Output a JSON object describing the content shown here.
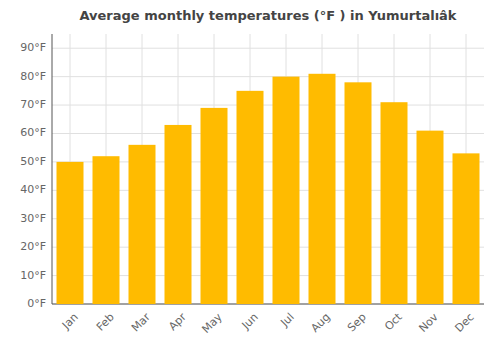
{
  "chart_data": {
    "type": "bar",
    "title": "Average monthly temperatures (°F ) in Yumurtalıâk",
    "categories": [
      "Jan",
      "Feb",
      "Mar",
      "Apr",
      "May",
      "Jun",
      "Jul",
      "Aug",
      "Sep",
      "Oct",
      "Nov",
      "Dec"
    ],
    "values": [
      50,
      52,
      56,
      63,
      69,
      75,
      80,
      81,
      78,
      71,
      61,
      53
    ],
    "color": "#FFBB00",
    "ylim": [
      0,
      95
    ],
    "yticks": [
      {
        "value": 0,
        "label": "0°F"
      },
      {
        "value": 10,
        "label": "10°F"
      },
      {
        "value": 20,
        "label": "20°F"
      },
      {
        "value": 30,
        "label": "30°F"
      },
      {
        "value": 40,
        "label": "40°F"
      },
      {
        "value": 50,
        "label": "50°F"
      },
      {
        "value": 60,
        "label": "60°F"
      },
      {
        "value": 70,
        "label": "70°F"
      },
      {
        "value": 80,
        "label": "80°F"
      },
      {
        "value": 90,
        "label": "90°F"
      }
    ],
    "grid": true
  }
}
